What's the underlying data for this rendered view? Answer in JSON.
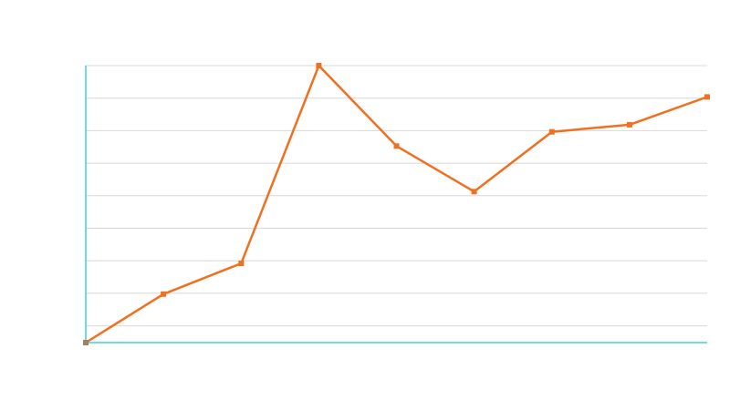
{
  "chart_data": {
    "type": "line",
    "x": [
      1,
      2,
      3,
      4,
      5,
      6,
      7,
      8,
      9
    ],
    "series": [
      {
        "name": "",
        "values": [
          0,
          15,
          24.5,
          85.7,
          60.8,
          46.7,
          65.2,
          67.4,
          76
        ]
      }
    ],
    "title": "",
    "xlabel": "",
    "ylabel": "",
    "ylim": [
      0,
      85.7
    ],
    "grid": true,
    "legend": "none",
    "colors": {
      "line": "#f07020",
      "first_marker": "#a08060",
      "axis": "#40d0d0",
      "grid": "#d8d8d8"
    }
  }
}
